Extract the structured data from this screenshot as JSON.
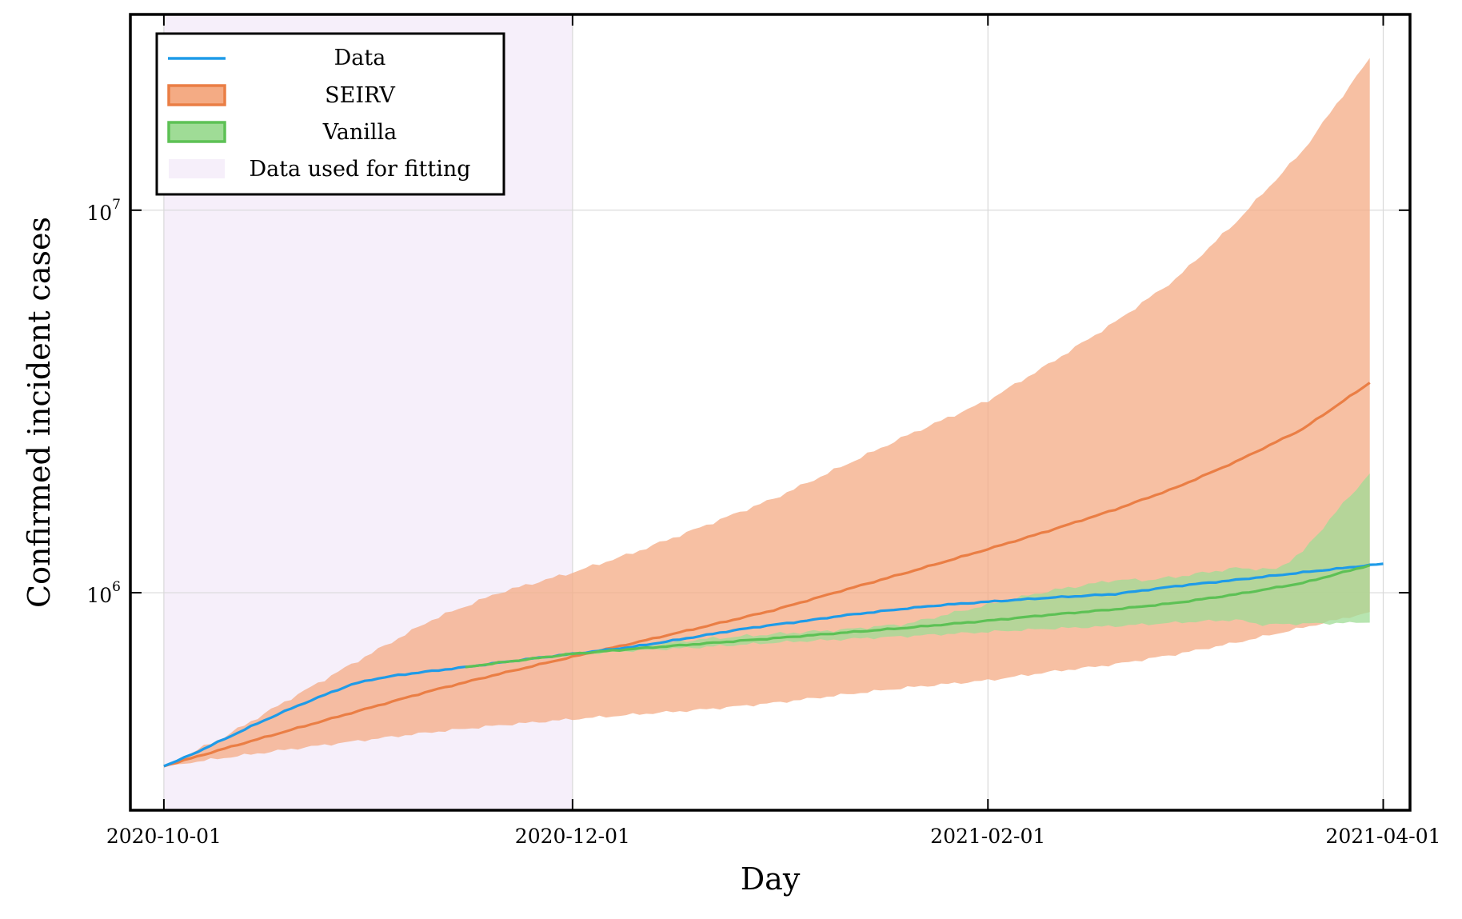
{
  "chart_data": {
    "type": "line",
    "xlabel": "Day",
    "ylabel": "Confirmed incident cases",
    "y_scale": "log",
    "xlim": [
      "2020-09-26",
      "2021-04-05"
    ],
    "ylim": [
      270000,
      32500000
    ],
    "x_ticks": [
      {
        "date": "2020-10-01",
        "label": "2020-10-01"
      },
      {
        "date": "2020-12-01",
        "label": "2020-12-01"
      },
      {
        "date": "2021-02-01",
        "label": "2021-02-01"
      },
      {
        "date": "2021-04-01",
        "label": "2021-04-01"
      }
    ],
    "y_ticks": [
      {
        "value": 1000000,
        "base": "10",
        "exp": "6"
      },
      {
        "value": 10000000,
        "base": "10",
        "exp": "7"
      }
    ],
    "grid": true,
    "legend_position": "top-left",
    "fitting_window": {
      "start": "2020-10-01",
      "end": "2020-12-01",
      "label": "Data used for fitting",
      "color": "#f6effa"
    },
    "series": [
      {
        "name": "Data",
        "kind": "line",
        "color": "#1e9be8",
        "points": [
          [
            "2020-10-01",
            352000
          ],
          [
            "2020-10-04",
            370000
          ],
          [
            "2020-10-07",
            391000
          ],
          [
            "2020-10-10",
            414000
          ],
          [
            "2020-10-14",
            447000
          ],
          [
            "2020-10-18",
            481000
          ],
          [
            "2020-10-22",
            515000
          ],
          [
            "2020-10-27",
            558000
          ],
          [
            "2020-10-29",
            575000
          ],
          [
            "2020-11-01",
            593000
          ],
          [
            "2020-11-05",
            609000
          ],
          [
            "2020-11-08",
            618000
          ],
          [
            "2020-11-11",
            627000
          ],
          [
            "2020-11-15",
            639000
          ],
          [
            "2020-11-20",
            656000
          ],
          [
            "2020-11-26",
            676000
          ],
          [
            "2020-12-01",
            692000
          ],
          [
            "2020-12-06",
            708000
          ],
          [
            "2020-12-10",
            722000
          ],
          [
            "2020-12-15",
            745000
          ],
          [
            "2020-12-20",
            770000
          ],
          [
            "2020-12-25",
            797000
          ],
          [
            "2020-12-30",
            820000
          ],
          [
            "2021-01-05",
            845000
          ],
          [
            "2021-01-10",
            870000
          ],
          [
            "2021-01-15",
            890000
          ],
          [
            "2021-01-20",
            910000
          ],
          [
            "2021-01-25",
            928000
          ],
          [
            "2021-02-01",
            947000
          ],
          [
            "2021-02-10",
            970000
          ],
          [
            "2021-02-20",
            992000
          ],
          [
            "2021-03-01",
            1040000
          ],
          [
            "2021-03-10",
            1080000
          ],
          [
            "2021-03-20",
            1130000
          ],
          [
            "2021-03-30",
            1180000
          ],
          [
            "2021-04-01",
            1190000
          ]
        ]
      },
      {
        "name": "SEIRV",
        "kind": "band",
        "color": "#ea7e45",
        "fill": "#f4ab84",
        "median": [
          [
            "2020-10-01",
            352000
          ],
          [
            "2020-10-10",
            391000
          ],
          [
            "2020-10-20",
            438000
          ],
          [
            "2020-10-31",
            496000
          ],
          [
            "2020-11-10",
            555000
          ],
          [
            "2020-11-20",
            613000
          ],
          [
            "2020-12-01",
            680000
          ],
          [
            "2020-12-10",
            738000
          ],
          [
            "2020-12-20",
            810000
          ],
          [
            "2020-12-31",
            900000
          ],
          [
            "2021-01-10",
            1010000
          ],
          [
            "2021-01-20",
            1130000
          ],
          [
            "2021-02-01",
            1300000
          ],
          [
            "2021-02-10",
            1450000
          ],
          [
            "2021-02-20",
            1650000
          ],
          [
            "2021-03-01",
            1880000
          ],
          [
            "2021-03-10",
            2200000
          ],
          [
            "2021-03-20",
            2680000
          ],
          [
            "2021-03-30",
            3540000
          ]
        ],
        "upper": [
          [
            "2020-10-01",
            352000
          ],
          [
            "2020-10-10",
            420000
          ],
          [
            "2020-10-20",
            530000
          ],
          [
            "2020-10-31",
            680000
          ],
          [
            "2020-11-10",
            850000
          ],
          [
            "2020-11-20",
            1000000
          ],
          [
            "2020-12-01",
            1130000
          ],
          [
            "2020-12-10",
            1270000
          ],
          [
            "2020-12-20",
            1480000
          ],
          [
            "2020-12-31",
            1760000
          ],
          [
            "2021-01-10",
            2130000
          ],
          [
            "2021-01-20",
            2580000
          ],
          [
            "2021-02-01",
            3180000
          ],
          [
            "2021-02-10",
            3950000
          ],
          [
            "2021-02-20",
            5100000
          ],
          [
            "2021-03-01",
            6600000
          ],
          [
            "2021-03-10",
            9300000
          ],
          [
            "2021-03-20",
            14300000
          ],
          [
            "2021-03-30",
            25000000
          ]
        ],
        "lower": [
          [
            "2020-10-01",
            352000
          ],
          [
            "2020-10-10",
            370000
          ],
          [
            "2020-10-20",
            390000
          ],
          [
            "2020-10-31",
            412000
          ],
          [
            "2020-11-10",
            432000
          ],
          [
            "2020-11-20",
            450000
          ],
          [
            "2020-12-01",
            467000
          ],
          [
            "2020-12-10",
            480000
          ],
          [
            "2020-12-20",
            494000
          ],
          [
            "2020-12-31",
            515000
          ],
          [
            "2021-01-10",
            540000
          ],
          [
            "2021-01-20",
            565000
          ],
          [
            "2021-02-01",
            590000
          ],
          [
            "2021-02-10",
            620000
          ],
          [
            "2021-02-20",
            650000
          ],
          [
            "2021-03-01",
            690000
          ],
          [
            "2021-03-10",
            740000
          ],
          [
            "2021-03-20",
            810000
          ],
          [
            "2021-03-30",
            890000
          ]
        ]
      },
      {
        "name": "Vanilla",
        "kind": "band",
        "color": "#5dc155",
        "fill": "#9fdc96",
        "median": [
          [
            "2020-11-15",
            639000
          ],
          [
            "2020-11-20",
            656000
          ],
          [
            "2020-12-01",
            692000
          ],
          [
            "2020-12-10",
            713000
          ],
          [
            "2020-12-20",
            735000
          ],
          [
            "2020-12-31",
            760000
          ],
          [
            "2021-01-10",
            785000
          ],
          [
            "2021-01-20",
            810000
          ],
          [
            "2021-02-01",
            845000
          ],
          [
            "2021-02-10",
            875000
          ],
          [
            "2021-02-20",
            905000
          ],
          [
            "2021-03-01",
            940000
          ],
          [
            "2021-03-10",
            990000
          ],
          [
            "2021-03-20",
            1060000
          ],
          [
            "2021-03-30",
            1180000
          ]
        ],
        "upper": [
          [
            "2020-11-15",
            639000
          ],
          [
            "2020-11-20",
            658000
          ],
          [
            "2020-12-01",
            695000
          ],
          [
            "2020-12-10",
            722000
          ],
          [
            "2020-12-20",
            755000
          ],
          [
            "2020-12-31",
            780000
          ],
          [
            "2021-01-10",
            800000
          ],
          [
            "2021-01-20",
            830000
          ],
          [
            "2021-02-01",
            930000
          ],
          [
            "2021-02-10",
            1010000
          ],
          [
            "2021-02-20",
            1080000
          ],
          [
            "2021-02-25",
            1080000
          ],
          [
            "2021-03-01",
            1100000
          ],
          [
            "2021-03-10",
            1160000
          ],
          [
            "2021-03-16",
            1150000
          ],
          [
            "2021-03-20",
            1280000
          ],
          [
            "2021-03-25",
            1630000
          ],
          [
            "2021-03-30",
            2050000
          ]
        ],
        "lower": [
          [
            "2020-11-15",
            639000
          ],
          [
            "2020-11-20",
            654000
          ],
          [
            "2020-12-01",
            688000
          ],
          [
            "2020-12-10",
            705000
          ],
          [
            "2020-12-20",
            720000
          ],
          [
            "2020-12-31",
            740000
          ],
          [
            "2021-01-10",
            755000
          ],
          [
            "2021-01-20",
            770000
          ],
          [
            "2021-02-01",
            790000
          ],
          [
            "2021-02-10",
            805000
          ],
          [
            "2021-02-20",
            818000
          ],
          [
            "2021-03-01",
            835000
          ],
          [
            "2021-03-10",
            850000
          ],
          [
            "2021-03-14",
            825000
          ],
          [
            "2021-03-20",
            830000
          ],
          [
            "2021-03-30",
            835000
          ]
        ]
      }
    ]
  }
}
